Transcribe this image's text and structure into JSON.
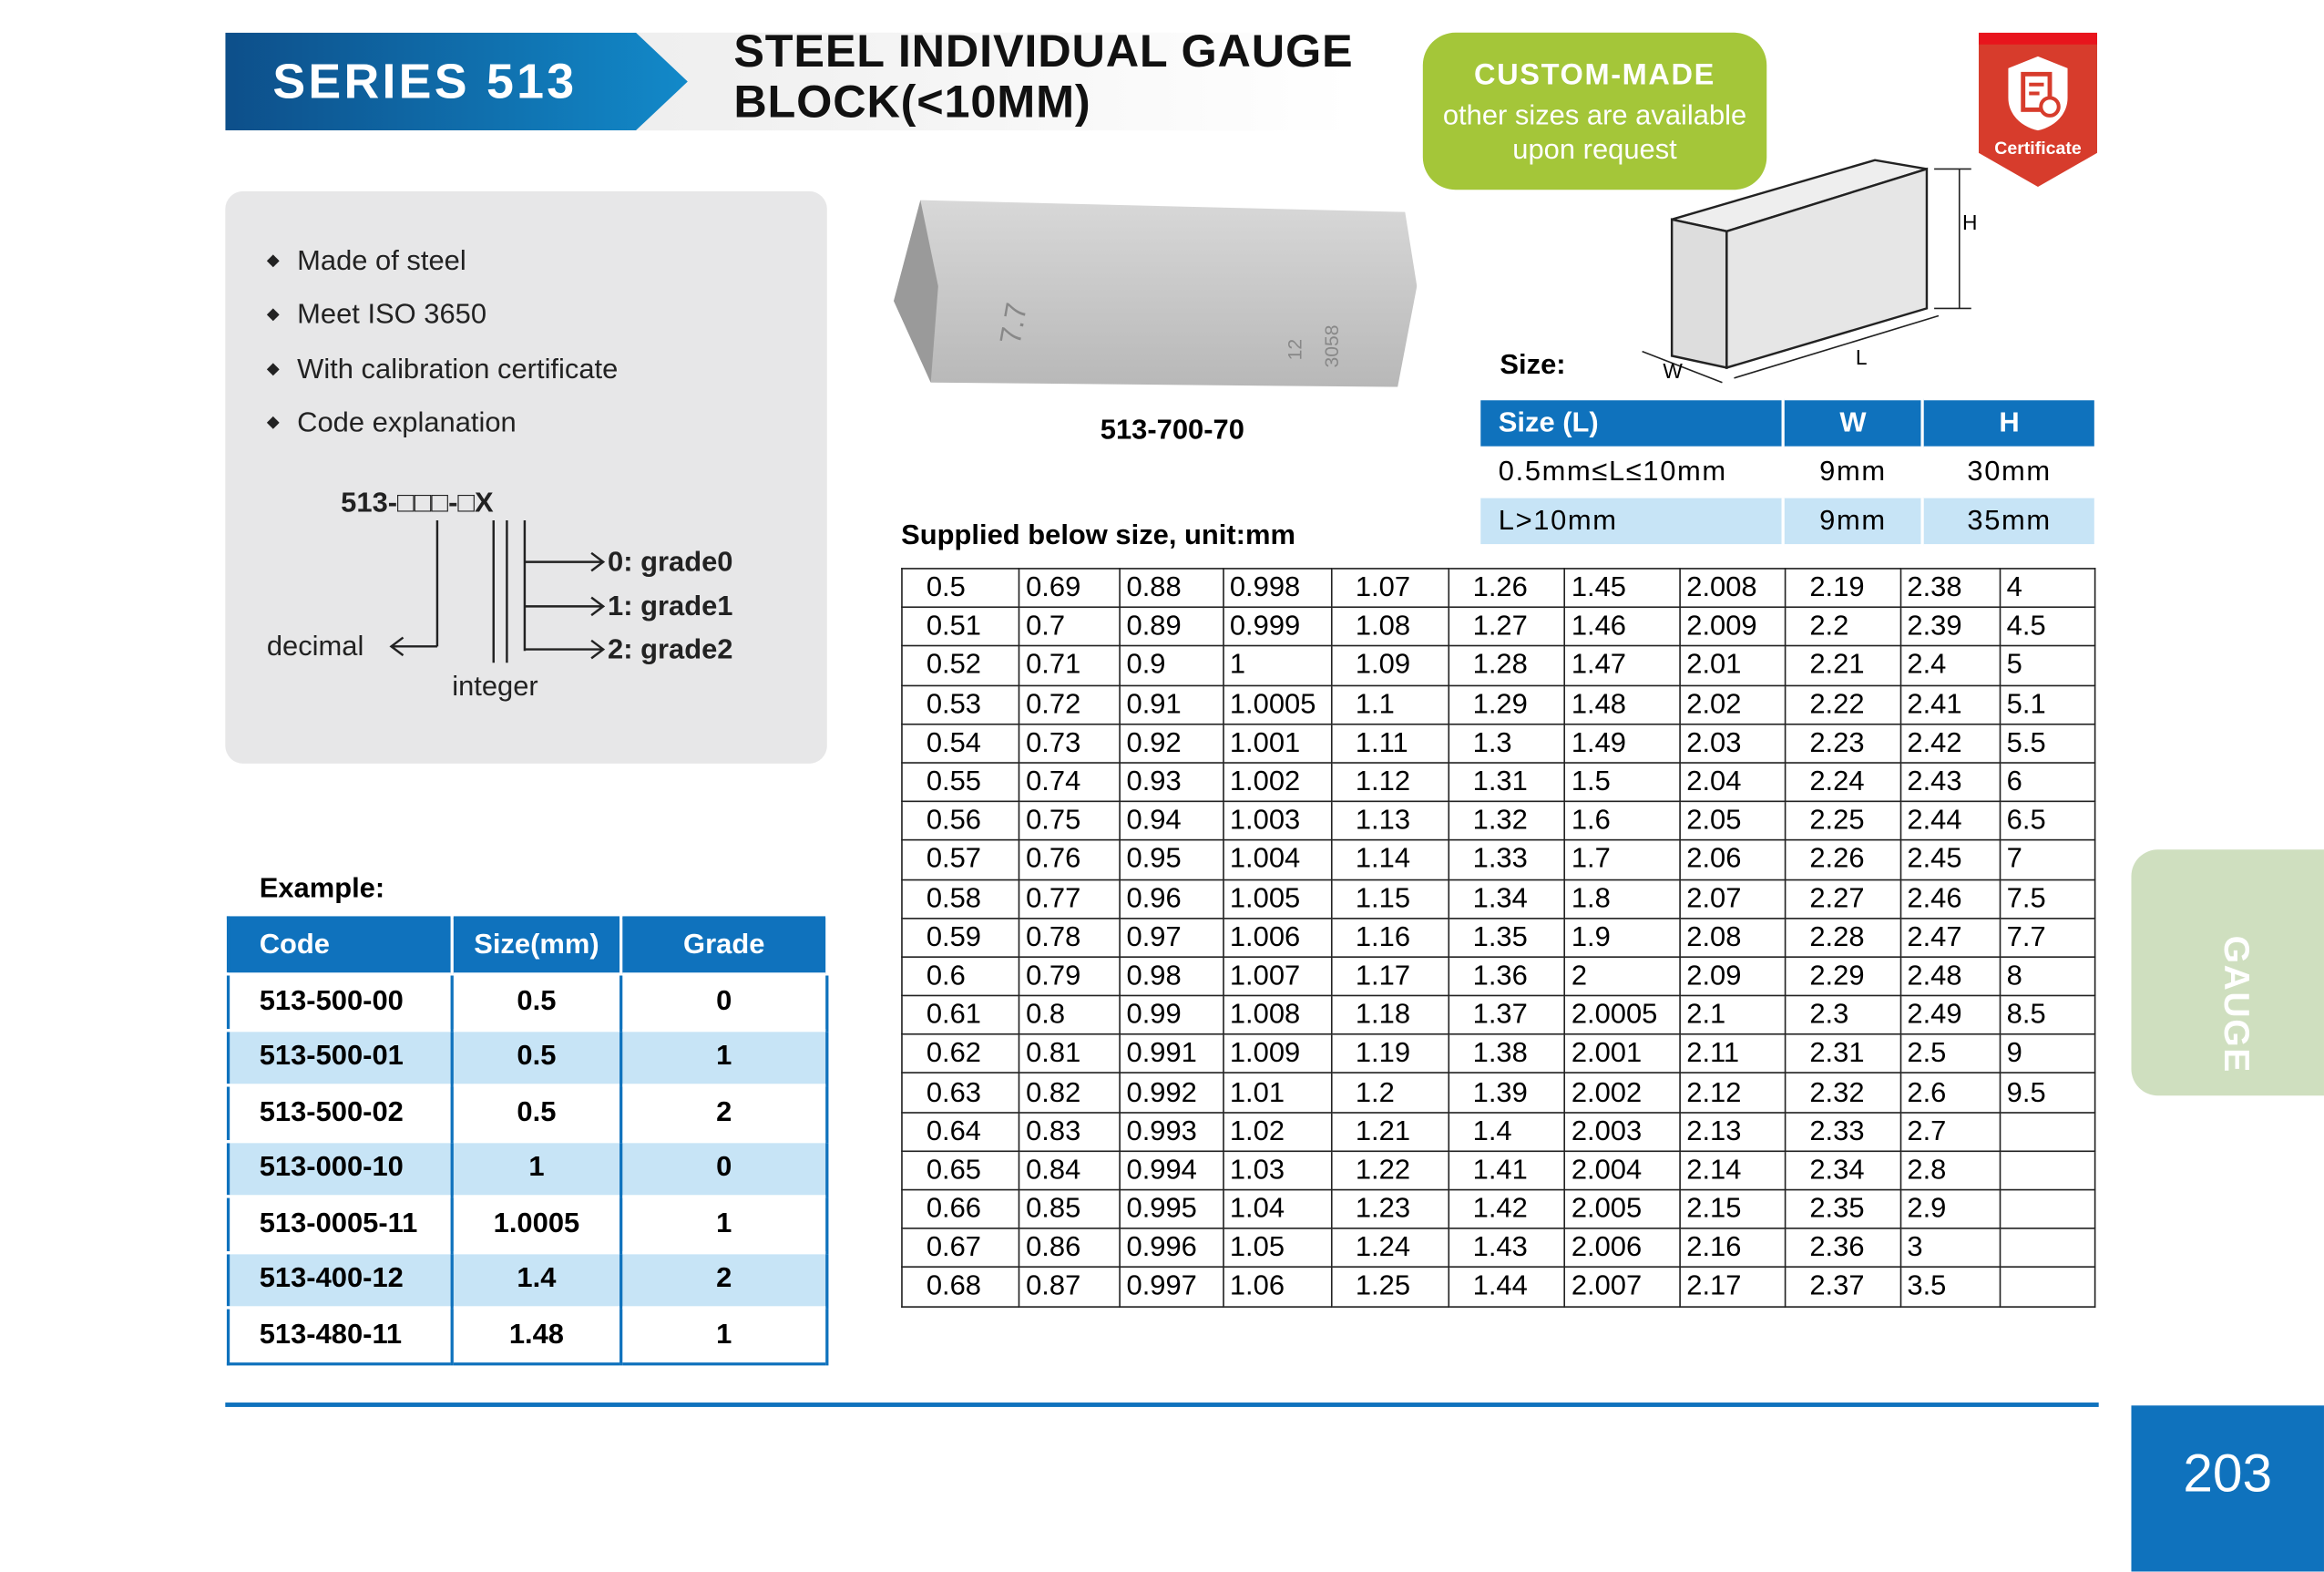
{
  "header": {
    "series": "SERIES 513",
    "title_line1": "STEEL INDIVIDUAL GAUGE",
    "title_line2": "BLOCK(<10MM)",
    "custom_title": "CUSTOM-MADE",
    "custom_line1": "other sizes are available",
    "custom_line2": "upon request",
    "certificate": "Certificate"
  },
  "features": {
    "items": [
      "Made of steel",
      "Meet ISO 3650",
      "With calibration certificate",
      "Code explanation"
    ],
    "code": "513-□□□-□X",
    "grade0": "0: grade0",
    "grade1": "1: grade1",
    "grade2": "2: grade2",
    "decimal": "decimal",
    "integer": "integer"
  },
  "photo": {
    "caption": "513-700-70",
    "mark1": "7.7",
    "mark2": "12",
    "mark3": "3058"
  },
  "size": {
    "label": "Size:",
    "dim_h": "H",
    "dim_w": "W",
    "dim_l": "L",
    "headers": [
      "Size (L)",
      "W",
      "H"
    ],
    "rows": [
      [
        "0.5mm≤L≤10mm",
        "9mm",
        "30mm"
      ],
      [
        "L>10mm",
        "9mm",
        "35mm"
      ]
    ]
  },
  "supplied": {
    "label": "Supplied below size, unit:mm",
    "columns": [
      [
        "0.5",
        "0.51",
        "0.52",
        "0.53",
        "0.54",
        "0.55",
        "0.56",
        "0.57",
        "0.58",
        "0.59",
        "0.6",
        "0.61",
        "0.62",
        "0.63",
        "0.64",
        "0.65",
        "0.66",
        "0.67",
        "0.68"
      ],
      [
        "0.69",
        "0.7",
        "0.71",
        "0.72",
        "0.73",
        "0.74",
        "0.75",
        "0.76",
        "0.77",
        "0.78",
        "0.79",
        "0.8",
        "0.81",
        "0.82",
        "0.83",
        "0.84",
        "0.85",
        "0.86",
        "0.87"
      ],
      [
        "0.88",
        "0.89",
        "0.9",
        "0.91",
        "0.92",
        "0.93",
        "0.94",
        "0.95",
        "0.96",
        "0.97",
        "0.98",
        "0.99",
        "0.991",
        "0.992",
        "0.993",
        "0.994",
        "0.995",
        "0.996",
        "0.997"
      ],
      [
        "0.998",
        "0.999",
        "1",
        "1.0005",
        "1.001",
        "1.002",
        "1.003",
        "1.004",
        "1.005",
        "1.006",
        "1.007",
        "1.008",
        "1.009",
        "1.01",
        "1.02",
        "1.03",
        "1.04",
        "1.05",
        "1.06"
      ],
      [
        "1.07",
        "1.08",
        "1.09",
        "1.1",
        "1.11",
        "1.12",
        "1.13",
        "1.14",
        "1.15",
        "1.16",
        "1.17",
        "1.18",
        "1.19",
        "1.2",
        "1.21",
        "1.22",
        "1.23",
        "1.24",
        "1.25"
      ],
      [
        "1.26",
        "1.27",
        "1.28",
        "1.29",
        "1.3",
        "1.31",
        "1.32",
        "1.33",
        "1.34",
        "1.35",
        "1.36",
        "1.37",
        "1.38",
        "1.39",
        "1.4",
        "1.41",
        "1.42",
        "1.43",
        "1.44"
      ],
      [
        "1.45",
        "1.46",
        "1.47",
        "1.48",
        "1.49",
        "1.5",
        "1.6",
        "1.7",
        "1.8",
        "1.9",
        "2",
        "2.0005",
        "2.001",
        "2.002",
        "2.003",
        "2.004",
        "2.005",
        "2.006",
        "2.007"
      ],
      [
        "2.008",
        "2.009",
        "2.01",
        "2.02",
        "2.03",
        "2.04",
        "2.05",
        "2.06",
        "2.07",
        "2.08",
        "2.09",
        "2.1",
        "2.11",
        "2.12",
        "2.13",
        "2.14",
        "2.15",
        "2.16",
        "2.17"
      ],
      [
        "2.19",
        "2.2",
        "2.21",
        "2.22",
        "2.23",
        "2.24",
        "2.25",
        "2.26",
        "2.27",
        "2.28",
        "2.29",
        "2.3",
        "2.31",
        "2.32",
        "2.33",
        "2.34",
        "2.35",
        "2.36",
        "2.37"
      ],
      [
        "2.38",
        "2.39",
        "2.4",
        "2.41",
        "2.42",
        "2.43",
        "2.44",
        "2.45",
        "2.46",
        "2.47",
        "2.48",
        "2.49",
        "2.5",
        "2.6",
        "2.7",
        "2.8",
        "2.9",
        "3",
        "3.5"
      ],
      [
        "4",
        "4.5",
        "5",
        "5.1",
        "5.5",
        "6",
        "6.5",
        "7",
        "7.5",
        "7.7",
        "8",
        "8.5",
        "9",
        "9.5",
        "",
        "",
        "",
        "",
        ""
      ]
    ]
  },
  "example": {
    "label": "Example:",
    "headers": [
      "Code",
      "Size(mm)",
      "Grade"
    ],
    "rows": [
      [
        "513-500-00",
        "0.5",
        "0"
      ],
      [
        "513-500-01",
        "0.5",
        "1"
      ],
      [
        "513-500-02",
        "0.5",
        "2"
      ],
      [
        "513-000-10",
        "1",
        "0"
      ],
      [
        "513-0005-11",
        "1.0005",
        "1"
      ],
      [
        "513-400-12",
        "1.4",
        "2"
      ],
      [
        "513-480-11",
        "1.48",
        "1"
      ]
    ]
  },
  "side_tab": "GAUGE",
  "page_number": "203"
}
